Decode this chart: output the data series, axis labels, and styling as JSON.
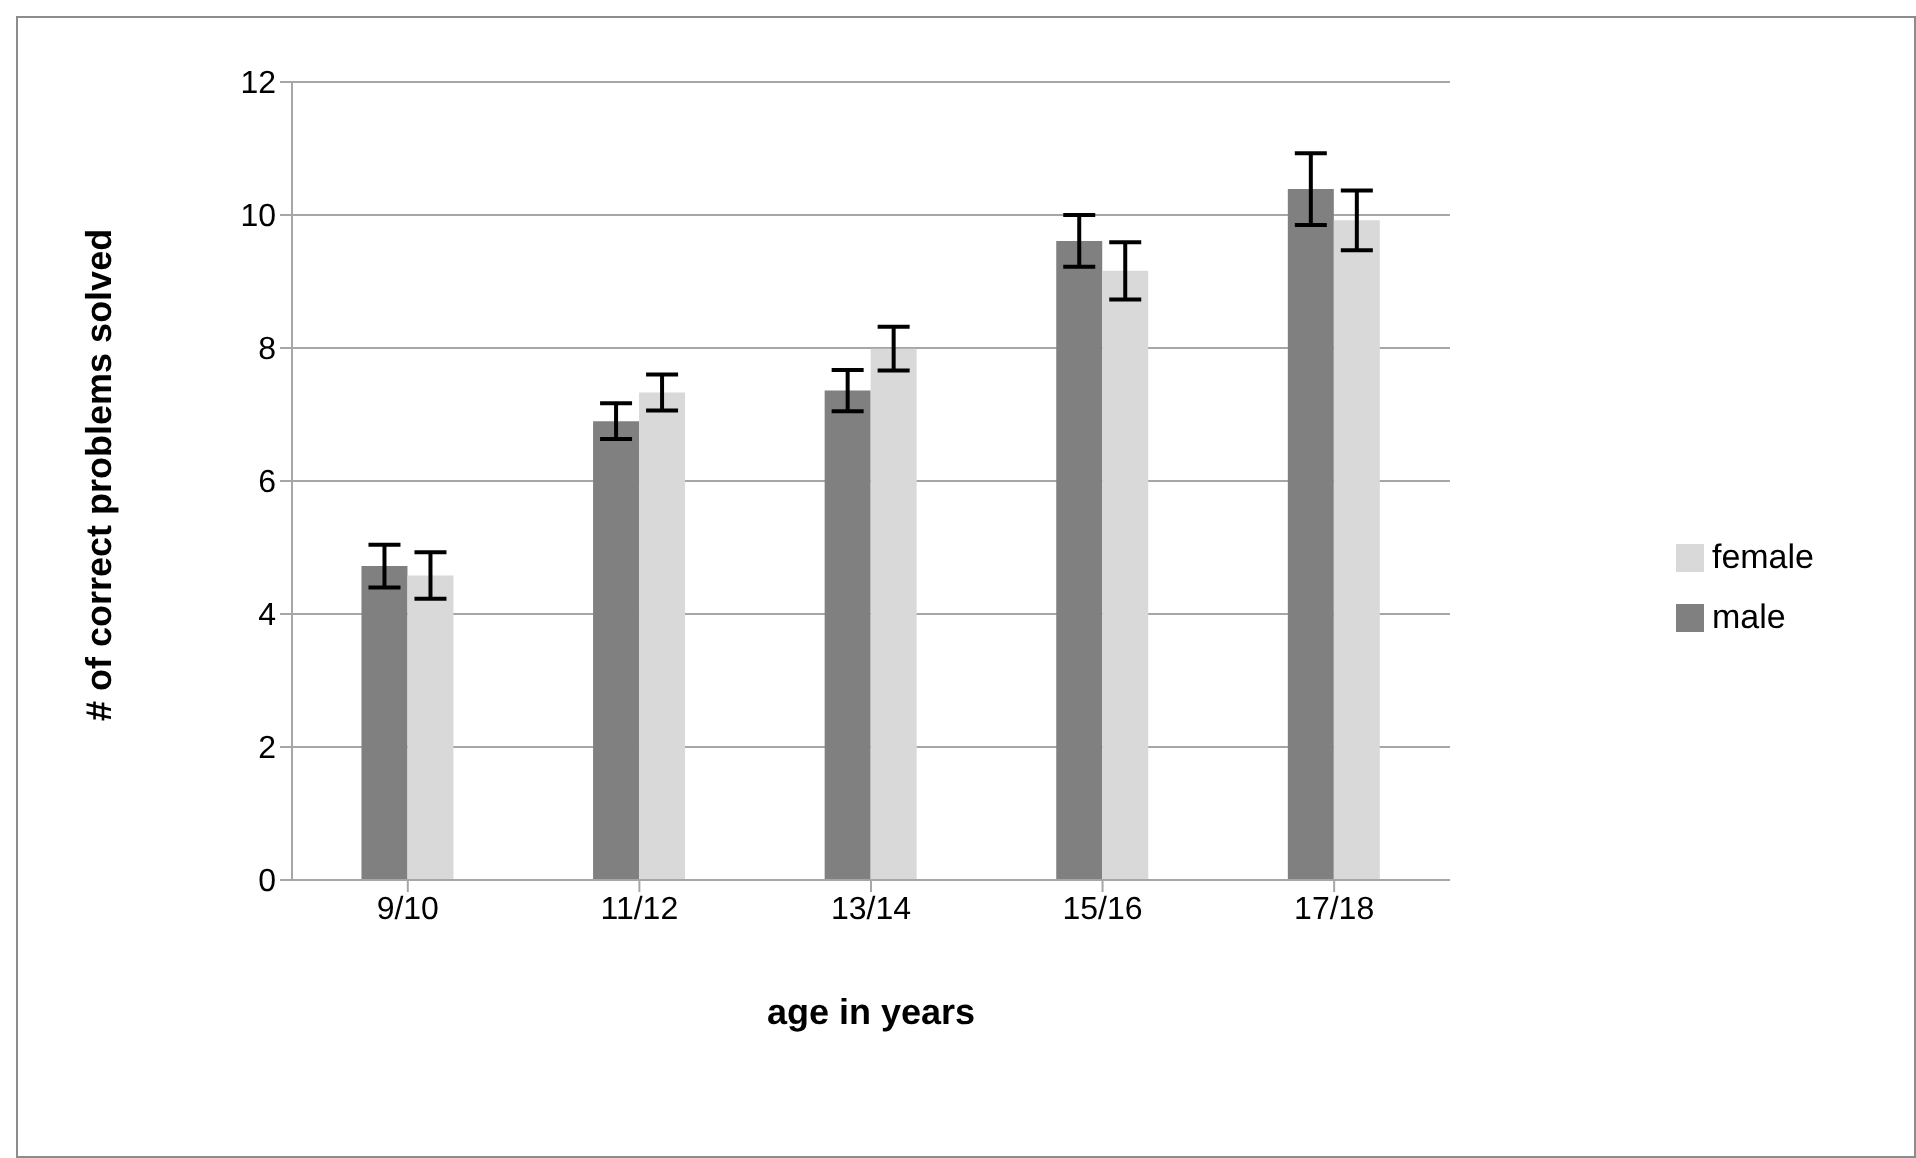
{
  "chart_data": {
    "type": "bar",
    "xlabel": "age in years",
    "ylabel": "# of correct problems solved",
    "categories": [
      "9/10",
      "11/12",
      "13/14",
      "15/16",
      "17/18"
    ],
    "series": [
      {
        "name": "male",
        "color": "#808080",
        "values": [
          4.72,
          6.9,
          7.36,
          9.61,
          10.39
        ],
        "errors": [
          0.32,
          0.27,
          0.31,
          0.39,
          0.54
        ]
      },
      {
        "name": "female",
        "color": "#d9d9d9",
        "values": [
          4.58,
          7.33,
          7.99,
          9.16,
          9.92
        ],
        "errors": [
          0.35,
          0.27,
          0.33,
          0.43,
          0.45
        ]
      }
    ],
    "ylim": [
      0,
      12
    ],
    "yticks": [
      0,
      2,
      4,
      6,
      8,
      10,
      12
    ],
    "grid": "y",
    "legend": "right"
  }
}
